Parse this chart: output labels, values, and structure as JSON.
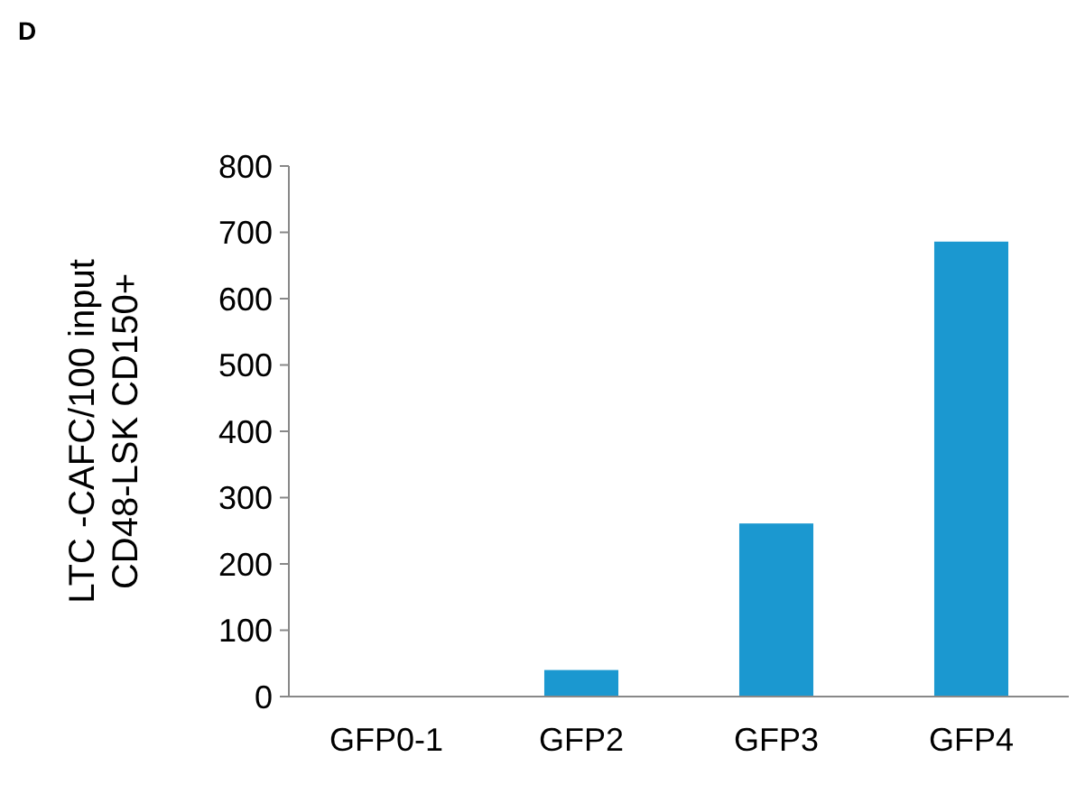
{
  "chart_data": {
    "type": "bar",
    "title": "D",
    "ylabel": "LTC -CAFC/100 input\nCD48-LSK CD150+",
    "categories": [
      "GFP0-1",
      "GFP2",
      "GFP3",
      "GFP4"
    ],
    "values": [
      0,
      40,
      261,
      686
    ],
    "color": "#1b98d0",
    "ylim": [
      0,
      800
    ],
    "yticks": [
      0,
      100,
      200,
      300,
      400,
      500,
      600,
      700,
      800
    ],
    "grid": false
  }
}
